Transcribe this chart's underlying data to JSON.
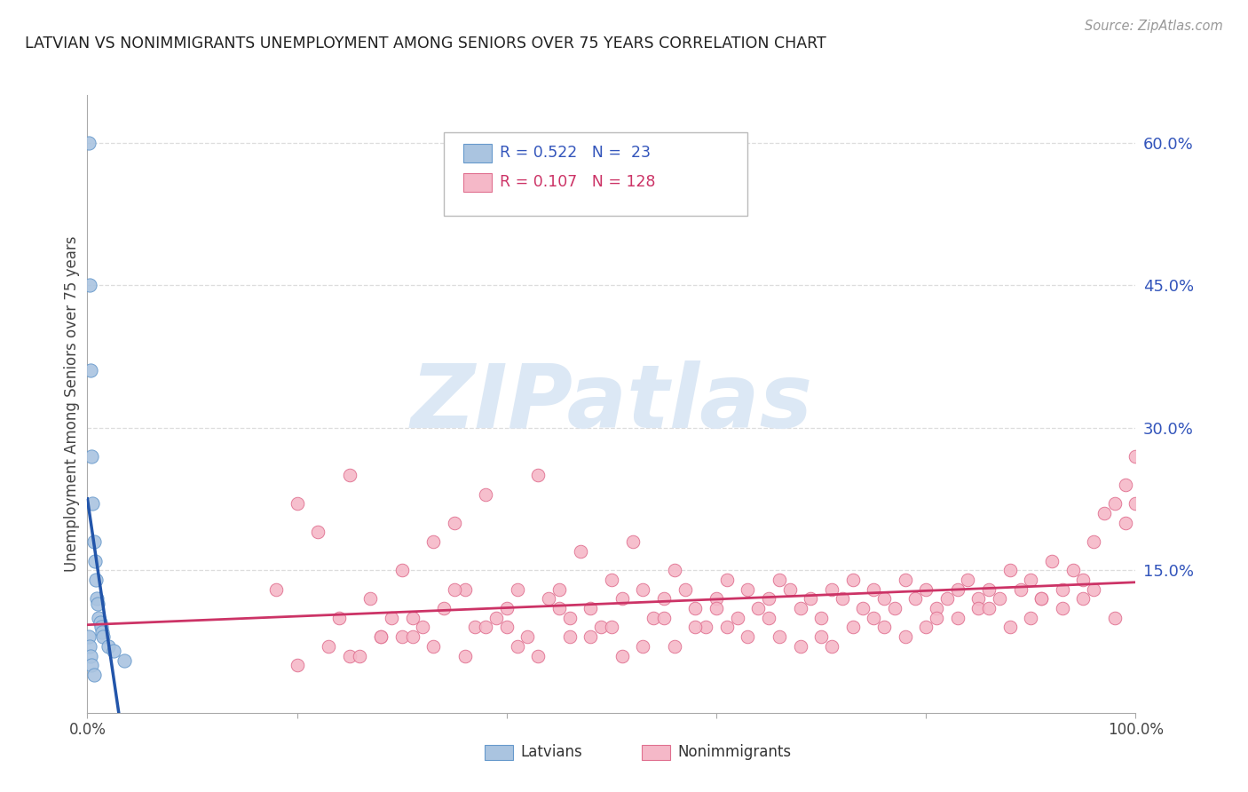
{
  "title": "LATVIAN VS NONIMMIGRANTS UNEMPLOYMENT AMONG SENIORS OVER 75 YEARS CORRELATION CHART",
  "source": "Source: ZipAtlas.com",
  "ylabel": "Unemployment Among Seniors over 75 years",
  "right_yticks": [
    "60.0%",
    "45.0%",
    "30.0%",
    "15.0%"
  ],
  "right_ytick_values": [
    0.6,
    0.45,
    0.3,
    0.15
  ],
  "xlim": [
    0.0,
    1.0
  ],
  "ylim": [
    0.0,
    0.65
  ],
  "latvian_R": 0.522,
  "latvian_N": 23,
  "nonimmigrant_R": 0.107,
  "nonimmigrant_N": 128,
  "latvian_color": "#aac4e0",
  "latvian_edge_color": "#6699cc",
  "nonimmigrant_color": "#f5b8c8",
  "nonimmigrant_edge_color": "#e07090",
  "trend_latvian_color": "#2255aa",
  "trend_nonimmigrant_color": "#cc3366",
  "watermark_color": "#dce8f5",
  "background_color": "#ffffff",
  "grid_color": "#dddddd",
  "latvians_x": [
    0.001,
    0.001,
    0.002,
    0.002,
    0.003,
    0.003,
    0.004,
    0.004,
    0.005,
    0.006,
    0.006,
    0.007,
    0.008,
    0.009,
    0.01,
    0.011,
    0.012,
    0.013,
    0.014,
    0.015,
    0.02,
    0.025,
    0.035
  ],
  "latvians_y": [
    0.6,
    0.08,
    0.45,
    0.07,
    0.36,
    0.06,
    0.27,
    0.05,
    0.22,
    0.18,
    0.04,
    0.16,
    0.14,
    0.12,
    0.115,
    0.1,
    0.095,
    0.09,
    0.085,
    0.08,
    0.07,
    0.065,
    0.055
  ],
  "nonimmigrants_x": [
    0.18,
    0.2,
    0.22,
    0.24,
    0.25,
    0.27,
    0.28,
    0.29,
    0.3,
    0.31,
    0.32,
    0.33,
    0.34,
    0.35,
    0.36,
    0.37,
    0.38,
    0.39,
    0.4,
    0.41,
    0.42,
    0.43,
    0.44,
    0.45,
    0.46,
    0.47,
    0.48,
    0.49,
    0.5,
    0.51,
    0.52,
    0.53,
    0.54,
    0.55,
    0.56,
    0.57,
    0.58,
    0.59,
    0.6,
    0.61,
    0.62,
    0.63,
    0.64,
    0.65,
    0.66,
    0.67,
    0.68,
    0.69,
    0.7,
    0.71,
    0.72,
    0.73,
    0.74,
    0.75,
    0.76,
    0.77,
    0.78,
    0.79,
    0.8,
    0.81,
    0.82,
    0.83,
    0.84,
    0.85,
    0.86,
    0.87,
    0.88,
    0.89,
    0.9,
    0.91,
    0.92,
    0.93,
    0.94,
    0.95,
    0.96,
    0.97,
    0.98,
    0.99,
    1.0,
    1.0,
    0.3,
    0.35,
    0.4,
    0.45,
    0.5,
    0.55,
    0.6,
    0.65,
    0.7,
    0.75,
    0.8,
    0.85,
    0.9,
    0.95,
    0.25,
    0.28,
    0.33,
    0.38,
    0.43,
    0.48,
    0.53,
    0.58,
    0.63,
    0.68,
    0.73,
    0.78,
    0.83,
    0.88,
    0.93,
    0.98,
    0.2,
    0.23,
    0.26,
    0.31,
    0.36,
    0.41,
    0.46,
    0.51,
    0.56,
    0.61,
    0.66,
    0.71,
    0.76,
    0.81,
    0.86,
    0.91,
    0.96,
    0.99
  ],
  "nonimmigrants_y": [
    0.13,
    0.22,
    0.19,
    0.1,
    0.25,
    0.12,
    0.08,
    0.1,
    0.15,
    0.1,
    0.09,
    0.18,
    0.11,
    0.2,
    0.13,
    0.09,
    0.23,
    0.1,
    0.11,
    0.13,
    0.08,
    0.25,
    0.12,
    0.13,
    0.1,
    0.17,
    0.11,
    0.09,
    0.14,
    0.12,
    0.18,
    0.13,
    0.1,
    0.12,
    0.15,
    0.13,
    0.11,
    0.09,
    0.12,
    0.14,
    0.1,
    0.13,
    0.11,
    0.12,
    0.14,
    0.13,
    0.11,
    0.12,
    0.1,
    0.13,
    0.12,
    0.14,
    0.11,
    0.13,
    0.12,
    0.11,
    0.14,
    0.12,
    0.13,
    0.11,
    0.12,
    0.13,
    0.14,
    0.12,
    0.13,
    0.12,
    0.15,
    0.13,
    0.14,
    0.12,
    0.16,
    0.13,
    0.15,
    0.14,
    0.18,
    0.21,
    0.22,
    0.2,
    0.27,
    0.22,
    0.08,
    0.13,
    0.09,
    0.11,
    0.09,
    0.1,
    0.11,
    0.1,
    0.08,
    0.1,
    0.09,
    0.11,
    0.1,
    0.12,
    0.06,
    0.08,
    0.07,
    0.09,
    0.06,
    0.08,
    0.07,
    0.09,
    0.08,
    0.07,
    0.09,
    0.08,
    0.1,
    0.09,
    0.11,
    0.1,
    0.05,
    0.07,
    0.06,
    0.08,
    0.06,
    0.07,
    0.08,
    0.06,
    0.07,
    0.09,
    0.08,
    0.07,
    0.09,
    0.1,
    0.11,
    0.12,
    0.13,
    0.24
  ]
}
